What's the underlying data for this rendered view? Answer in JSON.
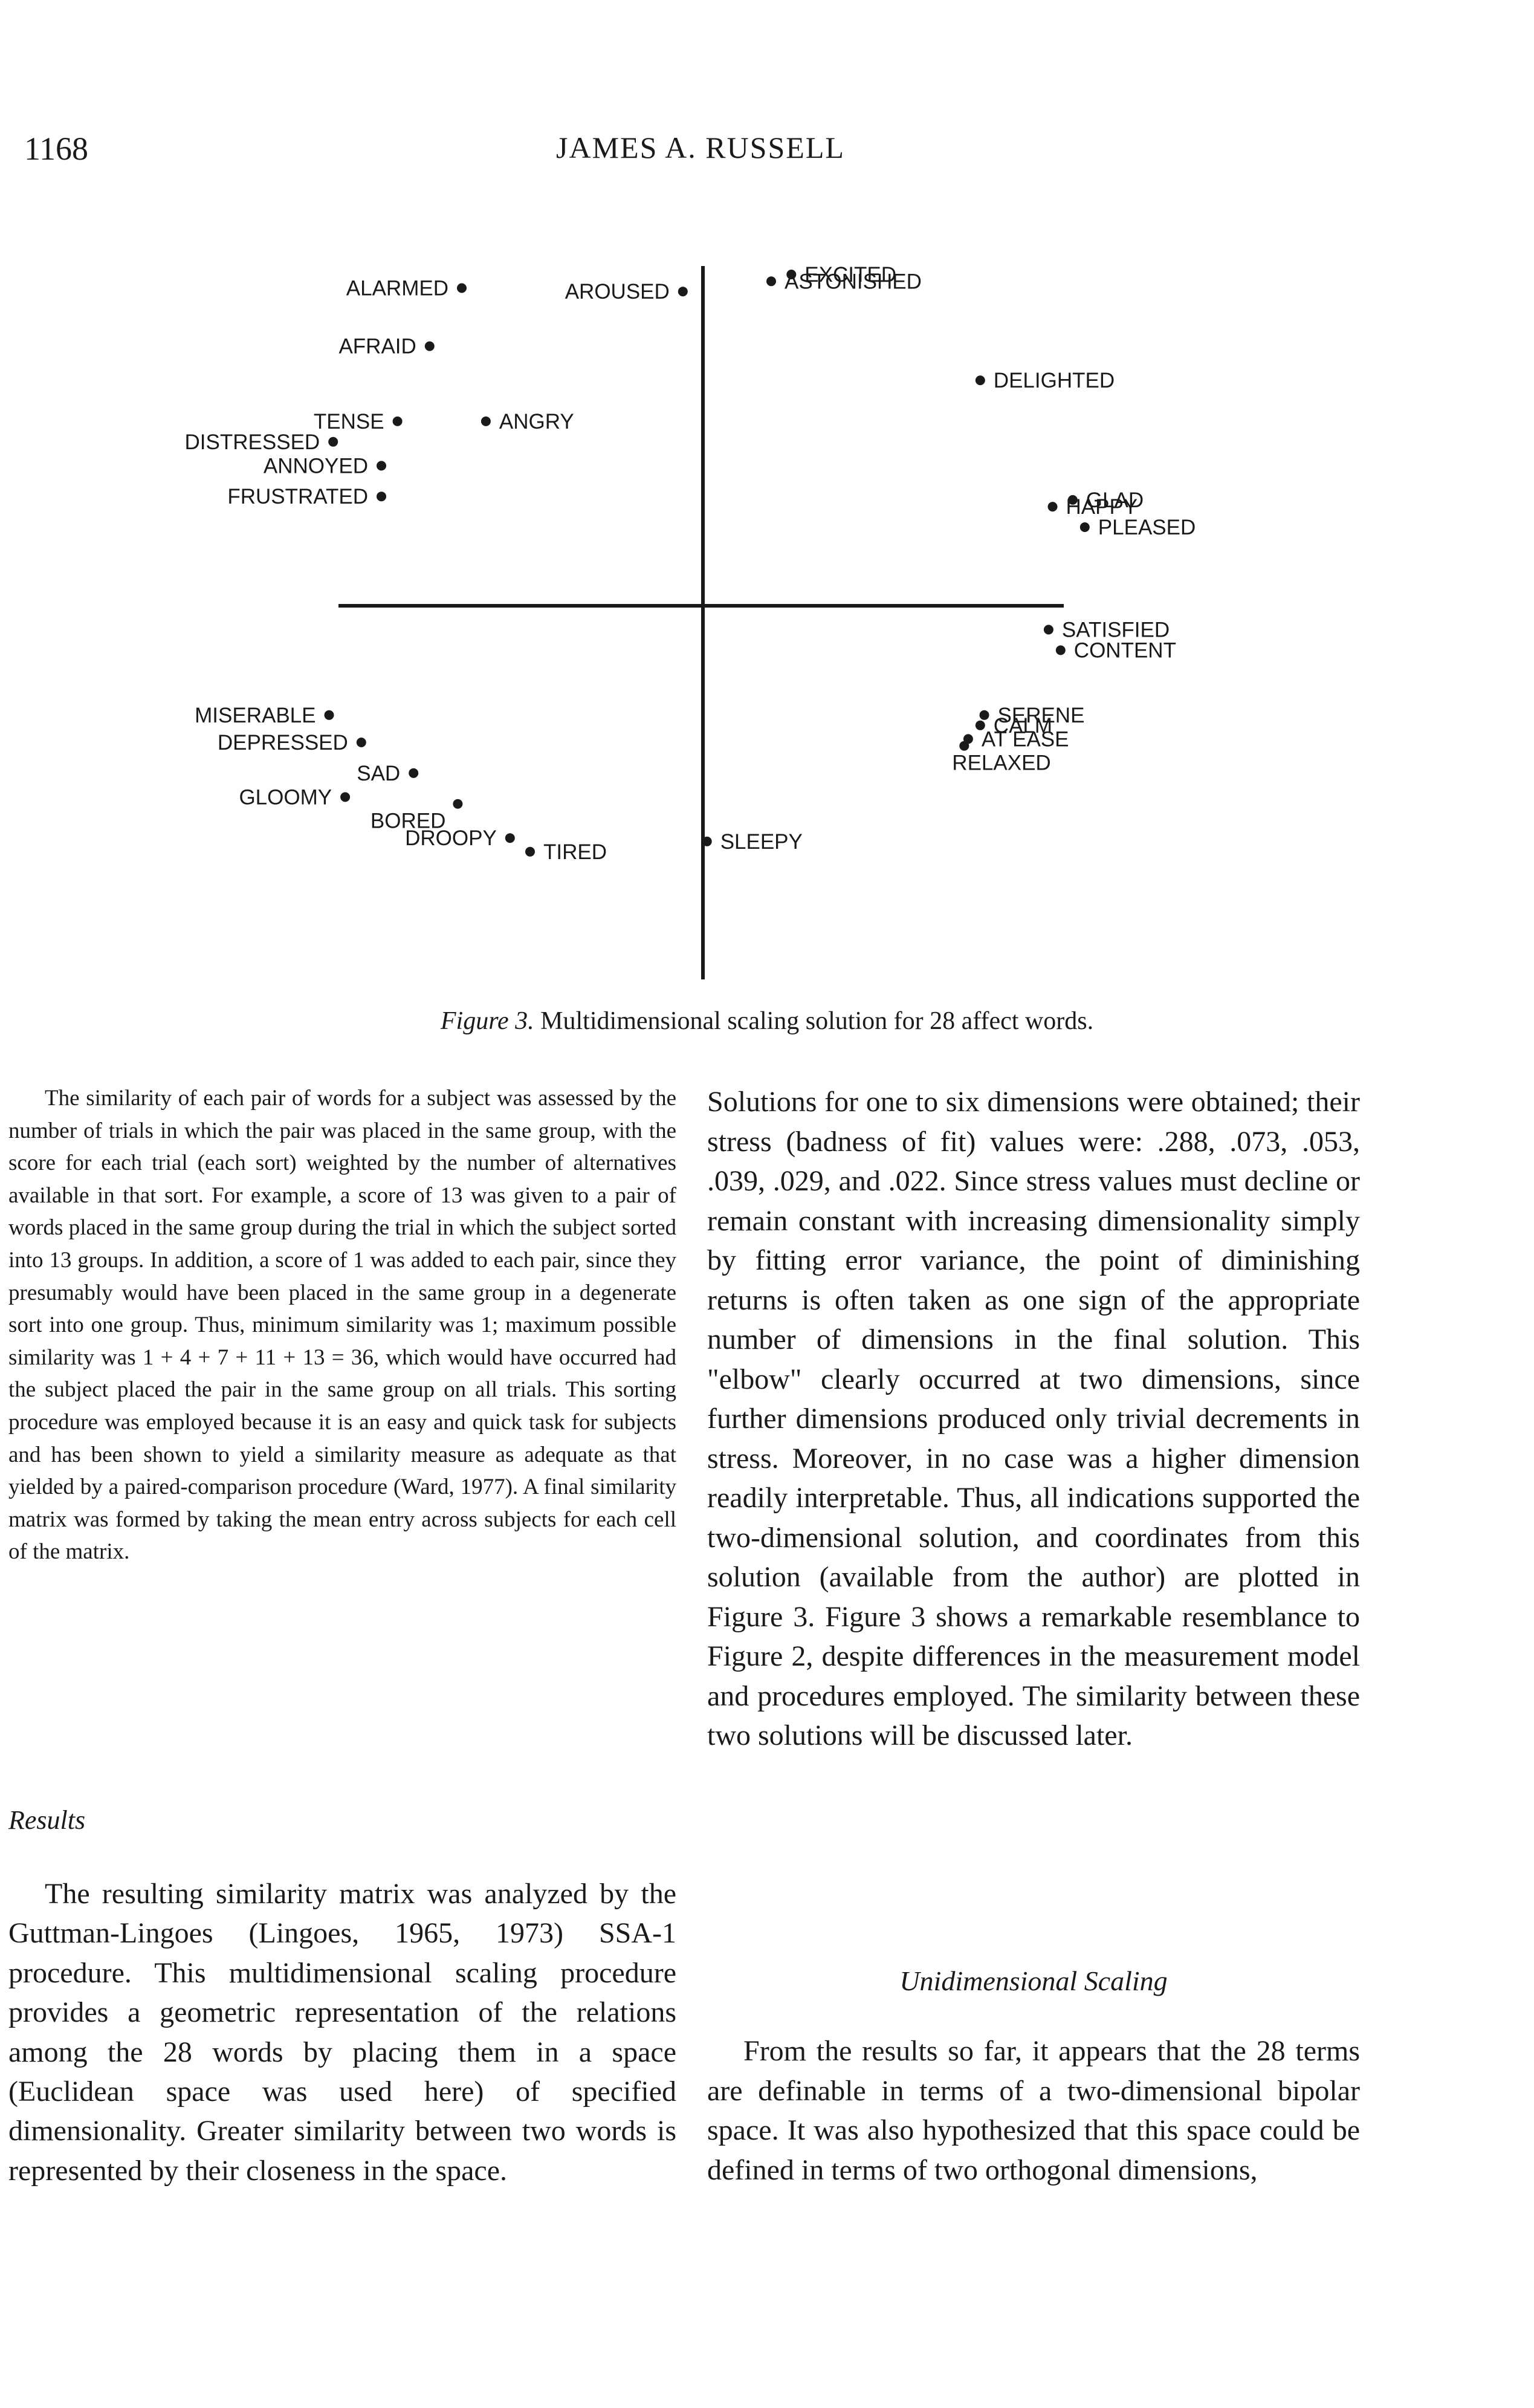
{
  "header": {
    "page_number": "1168",
    "author": "JAMES A. RUSSELL"
  },
  "figure": {
    "caption_label": "Figure 3.",
    "caption_text": " Multidimensional scaling solution for 28 affect words."
  },
  "chart_data": {
    "type": "scatter",
    "title": "",
    "xlabel": "",
    "ylabel": "",
    "axes_ticks": "none",
    "grid": false,
    "points": [
      {
        "label": "ALARMED",
        "x": -0.6,
        "y": 0.93
      },
      {
        "label": "AROUSED",
        "x": -0.05,
        "y": 0.92
      },
      {
        "label": "EXCITED",
        "x": 0.22,
        "y": 0.97
      },
      {
        "label": "ASTONISHED",
        "x": 0.17,
        "y": 0.95
      },
      {
        "label": "AFRAID",
        "x": -0.68,
        "y": 0.76
      },
      {
        "label": "DELIGHTED",
        "x": 0.69,
        "y": 0.66
      },
      {
        "label": "TENSE",
        "x": -0.76,
        "y": 0.54
      },
      {
        "label": "ANGRY",
        "x": -0.54,
        "y": 0.54
      },
      {
        "label": "DISTRESSED",
        "x": -0.92,
        "y": 0.48
      },
      {
        "label": "ANNOYED",
        "x": -0.8,
        "y": 0.41
      },
      {
        "label": "FRUSTRATED",
        "x": -0.8,
        "y": 0.32
      },
      {
        "label": "GLAD",
        "x": 0.92,
        "y": 0.31
      },
      {
        "label": "HAPPY",
        "x": 0.87,
        "y": 0.29
      },
      {
        "label": "PLEASED",
        "x": 0.95,
        "y": 0.23
      },
      {
        "label": "SATISFIED",
        "x": 0.86,
        "y": -0.07
      },
      {
        "label": "CONTENT",
        "x": 0.89,
        "y": -0.13
      },
      {
        "label": "MISERABLE",
        "x": -0.93,
        "y": -0.32
      },
      {
        "label": "DEPRESSED",
        "x": -0.85,
        "y": -0.4
      },
      {
        "label": "SAD",
        "x": -0.72,
        "y": -0.49
      },
      {
        "label": "GLOOMY",
        "x": -0.89,
        "y": -0.56
      },
      {
        "label": "BORED",
        "x": -0.61,
        "y": -0.58
      },
      {
        "label": "DROOPY",
        "x": -0.48,
        "y": -0.68
      },
      {
        "label": "TIRED",
        "x": -0.43,
        "y": -0.72
      },
      {
        "label": "SLEEPY",
        "x": 0.01,
        "y": -0.69
      },
      {
        "label": "SERENE",
        "x": 0.7,
        "y": -0.32
      },
      {
        "label": "CALM",
        "x": 0.69,
        "y": -0.35
      },
      {
        "label": "AT EASE",
        "x": 0.66,
        "y": -0.39
      },
      {
        "label": "RELAXED",
        "x": 0.65,
        "y": -0.41
      }
    ]
  },
  "left_column": {
    "paragraph_1": "The similarity of each pair of words for a subject was assessed by the number of trials in which the pair was placed in the same group, with the score for each trial (each sort) weighted by the number of alternatives available in that sort. For example, a score of 13 was given to a pair of words placed in the same group during the trial in which the subject sorted into 13 groups. In addition, a score of 1 was added to each pair, since they presumably would have been placed in the same group in a degenerate sort into one group. Thus, minimum similarity was 1; maximum possible similarity was 1 + 4 + 7 + 11 + 13 = 36, which would have occurred had the subject placed the pair in the same group on all trials. This sorting procedure was employed because it is an easy and quick task for subjects and has been shown to yield a similarity measure as adequate as that yielded by a paired-comparison procedure (Ward, 1977). A final similarity matrix was formed by taking the mean entry across subjects for each cell of the matrix.",
    "results_heading": "Results",
    "paragraph_2": "The resulting similarity matrix was analyzed by the Guttman-Lingoes (Lingoes, 1965, 1973) SSA-1 procedure. This multidimensional scaling procedure provides a geometric representation of the relations among the 28 words by placing them in a space (Euclidean space was used here) of specified dimensionality. Greater similarity between two words is represented by their closeness in the space."
  },
  "right_column": {
    "paragraph_1": "Solutions for one to six dimensions were obtained; their stress (badness of fit) values were: .288, .073, .053, .039, .029, and .022. Since stress values must decline or remain constant with increasing dimensionality simply by fitting error variance, the point of diminishing returns is often taken as one sign of the appropriate number of dimensions in the final solution. This \"elbow\" clearly occurred at two dimensions, since further dimensions produced only trivial decrements in stress. Moreover, in no case was a higher dimension readily interpretable. Thus, all indications supported the two-dimensional solution, and coordinates from this solution (available from the author) are plotted in Figure 3. Figure 3 shows a remarkable resemblance to Figure 2, despite differences in the measurement model and procedures employed. The similarity between these two solutions will be discussed later.",
    "unidim_heading": "Unidimensional Scaling",
    "paragraph_2": "From the results so far, it appears that the 28 terms are definable in terms of a two-dimensional bipolar space. It was also hypothesized that this space could be defined in terms of two orthogonal dimensions,"
  }
}
